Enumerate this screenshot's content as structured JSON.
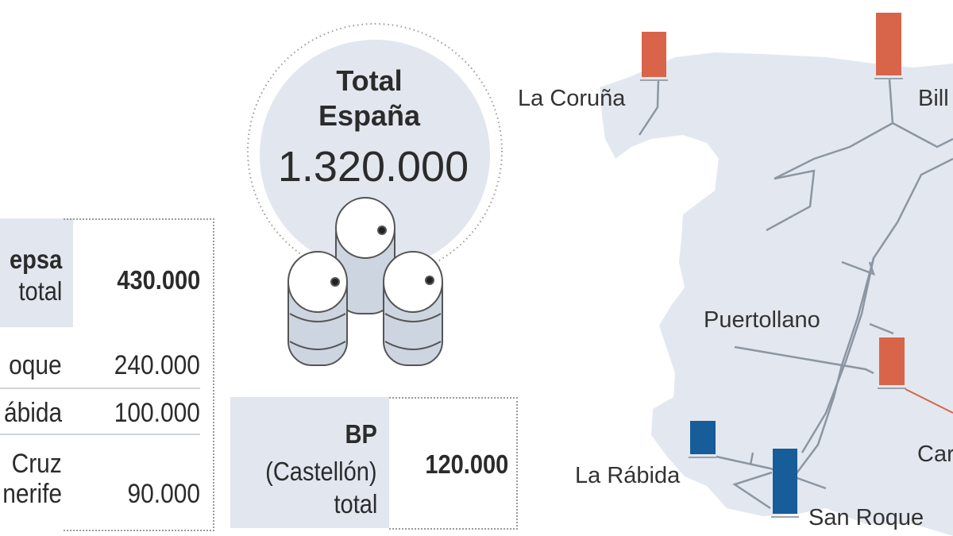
{
  "total": {
    "line1": "Total",
    "line2": "España",
    "value": "1.320.000"
  },
  "cepsa": {
    "name": "epsa",
    "total_label": "total",
    "total_value": "430.000",
    "rows": [
      {
        "label": "oque",
        "value": "240.000"
      },
      {
        "label": "ábida",
        "value": "100.000"
      },
      {
        "label_line1": "Cruz",
        "label_line2": "nerife",
        "value": "90.000"
      }
    ]
  },
  "bp": {
    "name": "BP",
    "location": "(Castellón)",
    "total_label": "total",
    "value": "120.000"
  },
  "map": {
    "labels": {
      "coruna": "La Coruña",
      "bilbao": "Bill",
      "puertollano": "Puertollano",
      "castellon": "Car",
      "rabida": "La Rábida",
      "san_roque": "San Roque"
    }
  },
  "colors": {
    "repsol": "#d8654a",
    "cepsa": "#165d99",
    "land": "#e3e8f0",
    "box": "#e1e6ef"
  }
}
